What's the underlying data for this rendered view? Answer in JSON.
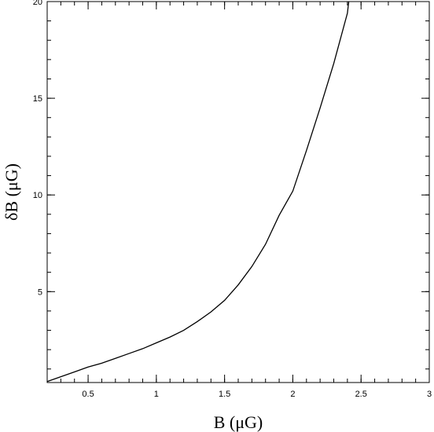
{
  "chart_data": {
    "type": "line",
    "xlabel": "B  (μG)",
    "ylabel": "δB  (μG)",
    "xlim": [
      0.2,
      3.0
    ],
    "ylim": [
      0.3,
      20
    ],
    "x_ticks": [
      {
        "value": 0.5,
        "label": "0.5"
      },
      {
        "value": 1.0,
        "label": "1"
      },
      {
        "value": 1.5,
        "label": "1.5"
      },
      {
        "value": 2.0,
        "label": "2"
      },
      {
        "value": 2.5,
        "label": "2.5"
      },
      {
        "value": 3.0,
        "label": "3"
      }
    ],
    "y_ticks": [
      {
        "value": 5,
        "label": "5"
      },
      {
        "value": 10,
        "label": "10"
      },
      {
        "value": 15,
        "label": "15"
      },
      {
        "value": 20,
        "label": "20"
      }
    ],
    "x_minor_step": 0.1,
    "y_minor_step": 1,
    "grid": false,
    "series": [
      {
        "color": "#000000",
        "points": [
          [
            0.2,
            0.35
          ],
          [
            0.3,
            0.6
          ],
          [
            0.4,
            0.85
          ],
          [
            0.5,
            1.1
          ],
          [
            0.6,
            1.3
          ],
          [
            0.7,
            1.55
          ],
          [
            0.8,
            1.8
          ],
          [
            0.9,
            2.05
          ],
          [
            1.0,
            2.35
          ],
          [
            1.1,
            2.65
          ],
          [
            1.2,
            3.0
          ],
          [
            1.3,
            3.45
          ],
          [
            1.4,
            3.95
          ],
          [
            1.5,
            4.55
          ],
          [
            1.6,
            5.35
          ],
          [
            1.7,
            6.3
          ],
          [
            1.8,
            7.45
          ],
          [
            1.9,
            8.95
          ],
          [
            2.0,
            10.2
          ],
          [
            2.1,
            12.3
          ],
          [
            2.2,
            14.5
          ],
          [
            2.3,
            16.8
          ],
          [
            2.4,
            19.4
          ],
          [
            2.41,
            20.0
          ]
        ]
      }
    ]
  }
}
